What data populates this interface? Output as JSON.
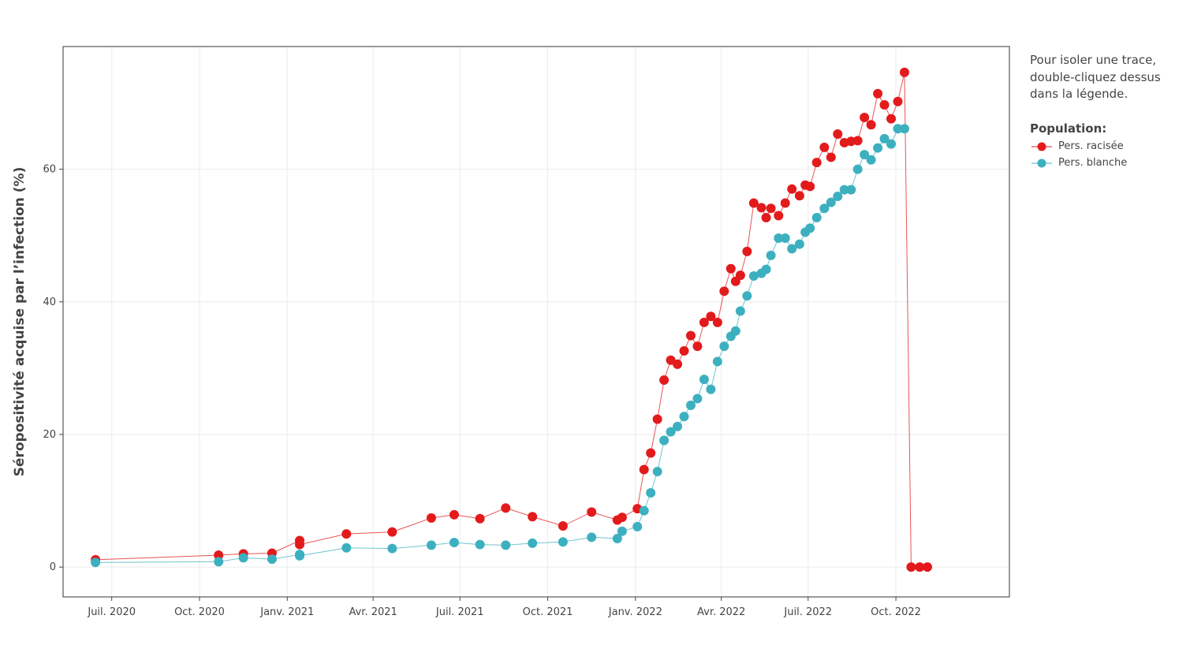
{
  "chart_data": {
    "type": "line",
    "title": "",
    "xlabel": "",
    "ylabel": "Séropositivité acquise par l’infection (%)",
    "x_ticks": [
      "2020-07-01",
      "2020-10-01",
      "2021-01-01",
      "2021-04-01",
      "2021-07-01",
      "2021-10-01",
      "2022-01-01",
      "2022-04-01",
      "2022-07-01",
      "2022-10-01"
    ],
    "x_tick_labels": [
      "Juil. 2020",
      "Oct. 2020",
      "Janv. 2021",
      "Avr. 2021",
      "Juil. 2021",
      "Oct. 2021",
      "Janv. 2022",
      "Avr. 2022",
      "Juil. 2022",
      "Oct. 2022"
    ],
    "y_ticks": [
      0,
      20,
      40,
      60
    ],
    "y_tick_labels": [
      "0",
      "20",
      "40",
      "60"
    ],
    "xlim": [
      "2020-05-11",
      "2023-01-28"
    ],
    "ylim": [
      -4.5,
      78.5
    ],
    "grid": true,
    "legend_position": "right",
    "legend_title": "Population:",
    "series": [
      {
        "name": "Pers. racisée",
        "color": "#e31a1c",
        "x": [
          "2020-06-14",
          "2020-10-21",
          "2020-11-16",
          "2020-12-16",
          "2021-01-14",
          "2021-01-14",
          "2021-03-04",
          "2021-04-21",
          "2021-06-01",
          "2021-06-25",
          "2021-07-22",
          "2021-08-18",
          "2021-09-15",
          "2021-10-17",
          "2021-11-16",
          "2021-12-13",
          "2021-12-18",
          "2022-01-03",
          "2022-01-10",
          "2022-01-17",
          "2022-01-24",
          "2022-01-31",
          "2022-02-07",
          "2022-02-14",
          "2022-02-21",
          "2022-02-28",
          "2022-03-07",
          "2022-03-14",
          "2022-03-21",
          "2022-03-28",
          "2022-04-04",
          "2022-04-11",
          "2022-04-16",
          "2022-04-21",
          "2022-04-28",
          "2022-05-05",
          "2022-05-13",
          "2022-05-18",
          "2022-05-23",
          "2022-05-31",
          "2022-06-07",
          "2022-06-14",
          "2022-06-22",
          "2022-06-28",
          "2022-07-03",
          "2022-07-10",
          "2022-07-18",
          "2022-07-25",
          "2022-08-01",
          "2022-08-08",
          "2022-08-15",
          "2022-08-22",
          "2022-08-29",
          "2022-09-05",
          "2022-09-12",
          "2022-09-19",
          "2022-09-26",
          "2022-10-03",
          "2022-10-10",
          "2022-10-17",
          "2022-10-26",
          "2022-11-03"
        ],
        "values": [
          1.1,
          1.8,
          2.0,
          2.1,
          4.0,
          3.4,
          5.0,
          5.3,
          7.4,
          7.9,
          7.3,
          8.9,
          7.6,
          6.2,
          8.3,
          7.1,
          7.5,
          8.8,
          14.7,
          17.2,
          22.3,
          28.2,
          31.2,
          30.6,
          32.6,
          34.9,
          33.3,
          36.9,
          37.8,
          36.9,
          41.6,
          45.0,
          43.1,
          44.0,
          47.6,
          54.9,
          54.2,
          52.7,
          54.1,
          53.0,
          54.9,
          57.0,
          56.0,
          57.6,
          57.4,
          61.0,
          63.3,
          61.8,
          65.3,
          64.0,
          64.2,
          64.3,
          67.8,
          66.7,
          71.4,
          69.7,
          67.6,
          70.2,
          74.6,
          0,
          0,
          0
        ]
      },
      {
        "name": "Pers. blanche",
        "color": "#3db0c0",
        "x": [
          "2020-06-14",
          "2020-10-21",
          "2020-11-16",
          "2020-12-16",
          "2021-01-14",
          "2021-01-14",
          "2021-03-04",
          "2021-04-21",
          "2021-06-01",
          "2021-06-25",
          "2021-07-22",
          "2021-08-18",
          "2021-09-15",
          "2021-10-17",
          "2021-11-16",
          "2021-12-13",
          "2021-12-18",
          "2022-01-03",
          "2022-01-10",
          "2022-01-17",
          "2022-01-24",
          "2022-01-31",
          "2022-02-07",
          "2022-02-14",
          "2022-02-21",
          "2022-02-28",
          "2022-03-07",
          "2022-03-14",
          "2022-03-21",
          "2022-03-28",
          "2022-04-04",
          "2022-04-11",
          "2022-04-16",
          "2022-04-21",
          "2022-04-28",
          "2022-05-05",
          "2022-05-13",
          "2022-05-18",
          "2022-05-23",
          "2022-05-31",
          "2022-06-07",
          "2022-06-14",
          "2022-06-22",
          "2022-06-28",
          "2022-07-03",
          "2022-07-10",
          "2022-07-18",
          "2022-07-25",
          "2022-08-01",
          "2022-08-08",
          "2022-08-15",
          "2022-08-22",
          "2022-08-29",
          "2022-09-05",
          "2022-09-12",
          "2022-09-19",
          "2022-09-26",
          "2022-10-03",
          "2022-10-10"
        ],
        "values": [
          0.7,
          0.8,
          1.4,
          1.2,
          1.9,
          1.7,
          2.9,
          2.8,
          3.3,
          3.7,
          3.4,
          3.3,
          3.6,
          3.8,
          4.5,
          4.3,
          5.4,
          6.1,
          8.5,
          11.2,
          14.4,
          19.1,
          20.4,
          21.2,
          22.7,
          24.4,
          25.4,
          28.3,
          26.8,
          31.0,
          33.3,
          34.8,
          35.6,
          38.6,
          40.9,
          43.9,
          44.3,
          44.9,
          47.0,
          49.6,
          49.6,
          48.0,
          48.7,
          50.5,
          51.1,
          52.7,
          54.1,
          55.0,
          55.9,
          56.9,
          56.9,
          60.0,
          62.2,
          61.4,
          63.2,
          64.6,
          63.8,
          66.1,
          66.1
        ]
      }
    ]
  },
  "note_lines": [
    "Pour isoler une trace,",
    "double-cliquez dessus",
    "dans la légende."
  ],
  "legend": {
    "title": "Population:",
    "items": [
      {
        "label": "Pers. racisée",
        "color": "#e31a1c"
      },
      {
        "label": "Pers. blanche",
        "color": "#3db0c0"
      }
    ]
  }
}
